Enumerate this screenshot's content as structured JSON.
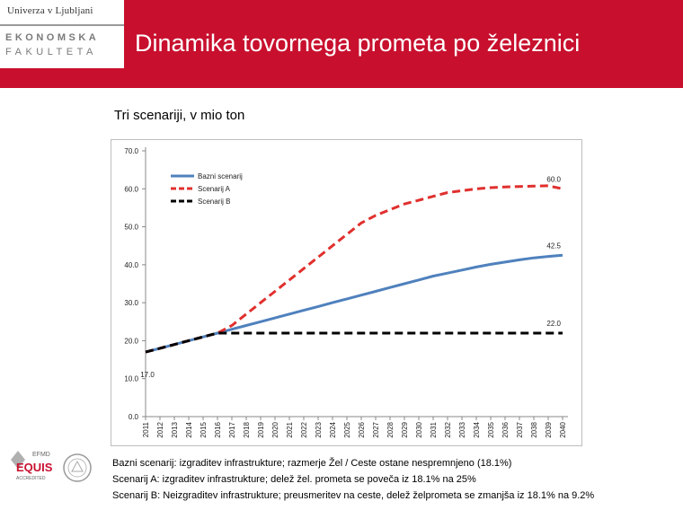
{
  "header": {
    "university": "Univerza v Ljubljani",
    "faculty_line1": "EKONOMSKA",
    "faculty_line2": "FAKULTETA",
    "title": "Dinamika tovornega prometa po železnici"
  },
  "subtitle": "Tri scenariji, v mio ton",
  "accreditation": {
    "top": "EFMD",
    "main": "EQUIS",
    "bottom": "ACCREDITED"
  },
  "chart_data": {
    "type": "line",
    "x": [
      2011,
      2012,
      2013,
      2014,
      2015,
      2016,
      2017,
      2018,
      2019,
      2020,
      2021,
      2022,
      2023,
      2024,
      2025,
      2026,
      2027,
      2028,
      2029,
      2030,
      2031,
      2032,
      2033,
      2034,
      2035,
      2036,
      2037,
      2038,
      2039,
      2040
    ],
    "x_tick_labels": [
      "2011",
      "2012",
      "2013",
      "2014",
      "2015",
      "2016",
      "2017",
      "2018",
      "2019",
      "2020",
      "2021",
      "2022",
      "2023",
      "2024",
      "2025",
      "2026",
      "2027",
      "2028",
      "2029",
      "2030",
      "2031",
      "2032",
      "2033",
      "2034",
      "2035",
      "2036",
      "2037",
      "2038",
      "2039",
      "2040"
    ],
    "ylim": [
      0,
      70
    ],
    "y_ticks": [
      0,
      10,
      20,
      30,
      40,
      50,
      60,
      70
    ],
    "y_tick_labels": [
      "0.0",
      "10.0",
      "20.0",
      "30.0",
      "40.0",
      "50.0",
      "60.0",
      "70.0"
    ],
    "legend_position": "top-left",
    "grid": false,
    "series": [
      {
        "name": "Bazni scenarij",
        "color": "#4f81bd",
        "dash": "solid",
        "values": [
          17.0,
          18.0,
          19.0,
          20.0,
          21.0,
          22.0,
          23.0,
          24.0,
          25.0,
          26.0,
          27.0,
          28.0,
          29.0,
          30.0,
          31.0,
          32.0,
          33.0,
          34.0,
          35.0,
          36.0,
          37.0,
          37.8,
          38.6,
          39.4,
          40.1,
          40.7,
          41.3,
          41.8,
          42.2,
          42.5
        ]
      },
      {
        "name": "Scenarij A",
        "color": "#e0302e",
        "dash": "dash",
        "values": [
          17.0,
          18.0,
          19.0,
          20.0,
          21.0,
          22.0,
          24.0,
          27.0,
          30.0,
          33.0,
          36.0,
          39.0,
          42.0,
          45.0,
          48.0,
          51.0,
          53.0,
          54.5,
          56.0,
          57.0,
          58.0,
          59.0,
          59.5,
          60.0,
          60.3,
          60.5,
          60.6,
          60.7,
          60.8,
          60.0
        ]
      },
      {
        "name": "Scenarij B",
        "color": "#000000",
        "dash": "dash",
        "values": [
          17.0,
          18.0,
          19.0,
          20.0,
          21.0,
          22.0,
          22.0,
          22.0,
          22.0,
          22.0,
          22.0,
          22.0,
          22.0,
          22.0,
          22.0,
          22.0,
          22.0,
          22.0,
          22.0,
          22.0,
          22.0,
          22.0,
          22.0,
          22.0,
          22.0,
          22.0,
          22.0,
          22.0,
          22.0,
          22.0
        ]
      }
    ],
    "annotations": [
      {
        "text": "60.0",
        "x": 2040,
        "y": 60.0
      },
      {
        "text": "42.5",
        "x": 2040,
        "y": 42.5
      },
      {
        "text": "22.0",
        "x": 2040,
        "y": 22.0
      },
      {
        "text": "17.0",
        "x": 2011,
        "y": 17.0
      }
    ]
  },
  "footnotes": [
    "Bazni scenarij: izgraditev infrastrukture; razmerje Žel / Ceste ostane nespremnjeno (18.1%)",
    "Scenarij A: izgraditev infrastrukture; delež žel. prometa se poveča iz 18.1% na 25%",
    "Scenarij B: Neizgraditev infrastrukture; preusmeritev na ceste, delež želprometa se zmanjša iz 18.1% na 9.2%"
  ]
}
